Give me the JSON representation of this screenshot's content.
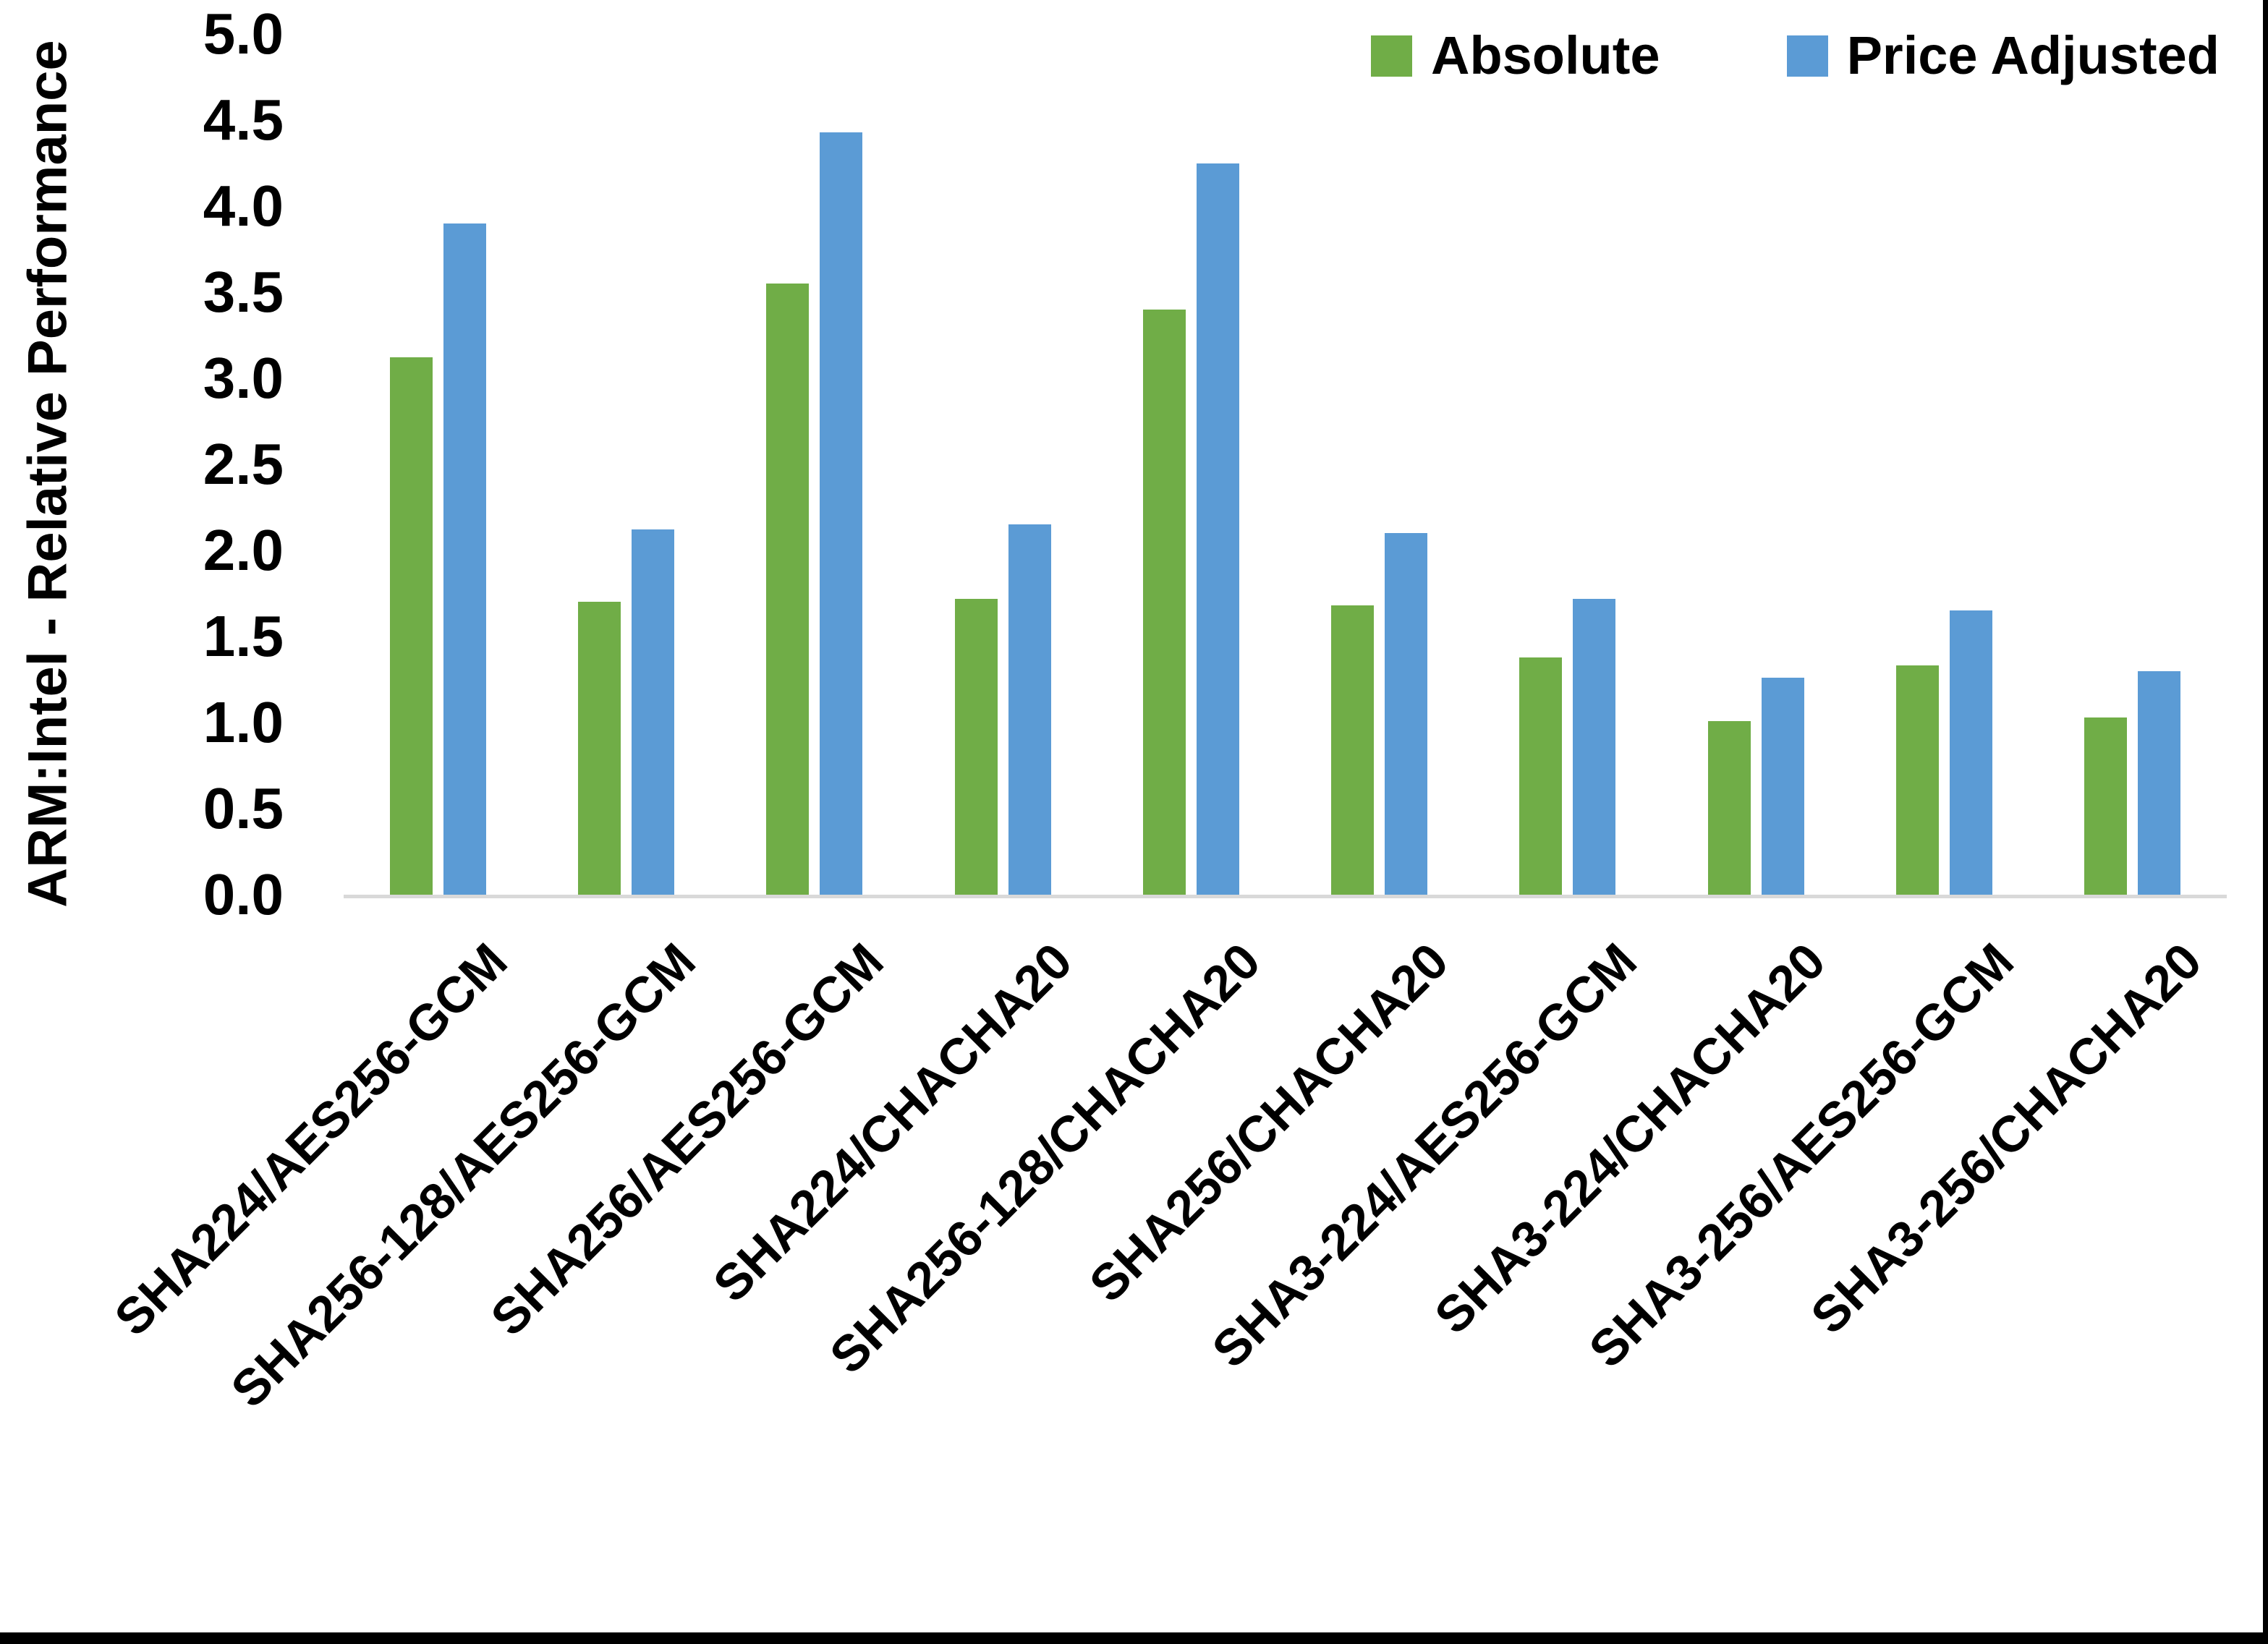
{
  "chart_data": {
    "type": "bar",
    "title": "",
    "ylabel": "ARM:Intel - Relative Performance",
    "xlabel": "",
    "ylim": [
      0.0,
      5.0
    ],
    "ytick_step": 0.5,
    "yticks": [
      "5.0",
      "4.5",
      "4.0",
      "3.5",
      "3.0",
      "2.5",
      "2.0",
      "1.5",
      "1.0",
      "0.5",
      "0.0"
    ],
    "grid": false,
    "legend": {
      "position": "top-right",
      "entries": [
        "Absolute",
        "Price Adjusted"
      ]
    },
    "categories": [
      "SHA224/AES256-GCM",
      "SHA256-128/AES256-GCM",
      "SHA256/AES256-GCM",
      "SHA224/CHACHA20",
      "SHA256-128/CHACHA20",
      "SHA256/CHACHA20",
      "SHA3-224/AES256-GCM",
      "SHA3-224/CHACHA20",
      "SHA3-256/AES256-GCM",
      "SHA3-256/CHACHA20"
    ],
    "series": [
      {
        "name": "Absolute",
        "color": "#70AD47",
        "values": [
          3.12,
          1.7,
          3.55,
          1.72,
          3.4,
          1.68,
          1.38,
          1.01,
          1.33,
          1.03
        ]
      },
      {
        "name": "Price Adjusted",
        "color": "#5B9BD5",
        "values": [
          3.9,
          2.12,
          4.43,
          2.15,
          4.25,
          2.1,
          1.72,
          1.26,
          1.65,
          1.3
        ]
      }
    ],
    "colors": {
      "axis_line": "#D9D9D9",
      "text": "#000000",
      "background": "#FFFFFF",
      "frame_border": "#000000"
    }
  }
}
